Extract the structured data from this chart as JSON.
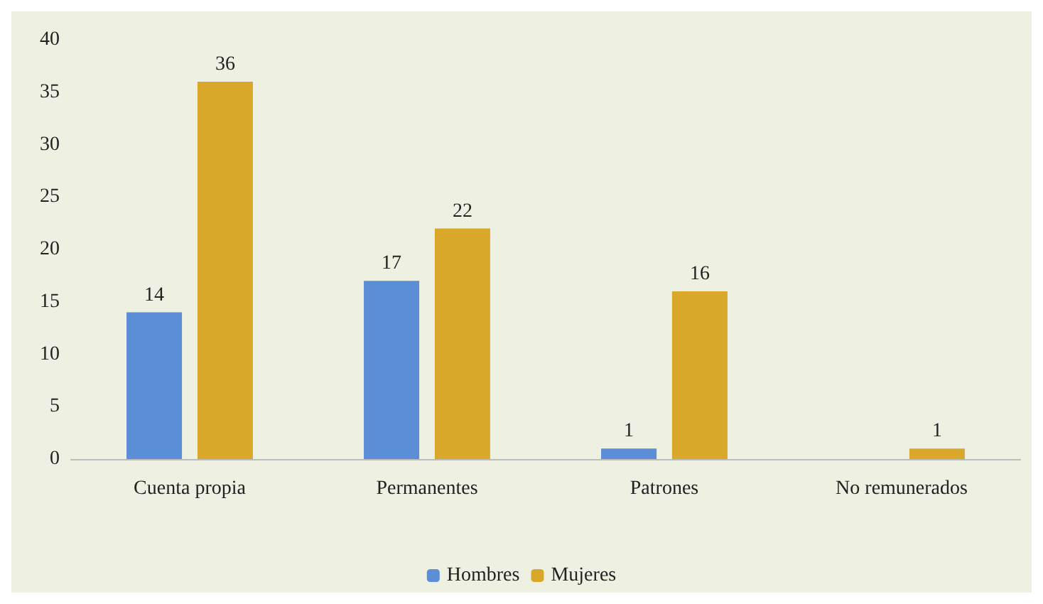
{
  "chart_data": {
    "type": "bar",
    "categories": [
      "Cuenta propia",
      "Permanentes",
      "Patrones",
      "No remunerados"
    ],
    "series": [
      {
        "name": "Hombres",
        "color": "#5b8ed6",
        "values": [
          14,
          17,
          1,
          null
        ]
      },
      {
        "name": "Mujeres",
        "color": "#d9a82b",
        "values": [
          36,
          22,
          16,
          1
        ]
      }
    ],
    "ylim": [
      0,
      40
    ],
    "yticks": [
      0,
      5,
      10,
      15,
      20,
      25,
      30,
      35,
      40
    ],
    "grid": false,
    "legend": "bottom",
    "data_labels": true
  }
}
